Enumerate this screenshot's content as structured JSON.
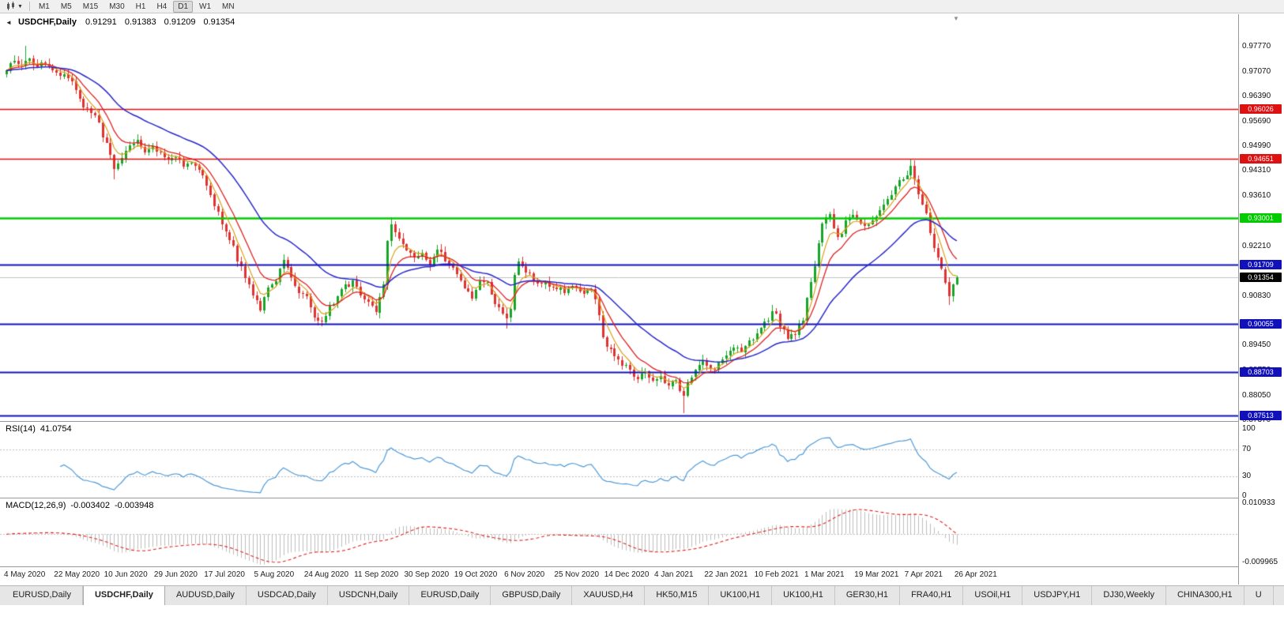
{
  "icons": {
    "collapse": "◄",
    "caret_down": "▼",
    "shift_marker": "▼"
  },
  "toolbar": {
    "timeframes": [
      "M1",
      "M5",
      "M15",
      "M30",
      "H1",
      "H4",
      "D1",
      "W1",
      "MN"
    ],
    "active_timeframe": "D1"
  },
  "tabs": [
    {
      "label": "EURUSD,Daily",
      "active": false
    },
    {
      "label": "USDCHF,Daily",
      "active": true
    },
    {
      "label": "AUDUSD,Daily",
      "active": false
    },
    {
      "label": "USDCAD,Daily",
      "active": false
    },
    {
      "label": "USDCNH,Daily",
      "active": false
    },
    {
      "label": "EURUSD,Daily",
      "active": false
    },
    {
      "label": "GBPUSD,Daily",
      "active": false
    },
    {
      "label": "XAUUSD,H4",
      "active": false
    },
    {
      "label": "HK50,M15",
      "active": false
    },
    {
      "label": "UK100,H1",
      "active": false
    },
    {
      "label": "UK100,H1",
      "active": false
    },
    {
      "label": "GER30,H1",
      "active": false
    },
    {
      "label": "FRA40,H1",
      "active": false
    },
    {
      "label": "USOil,H1",
      "active": false
    },
    {
      "label": "USDJPY,H1",
      "active": false
    },
    {
      "label": "DJ30,Weekly",
      "active": false
    },
    {
      "label": "CHINA300,H1",
      "active": false
    },
    {
      "label": "U",
      "active": false
    }
  ],
  "chart_data": {
    "type": "candlestick",
    "title": {
      "symbol": "USDCHF,Daily",
      "open": "0.91291",
      "high": "0.91383",
      "low": "0.91209",
      "close": "0.91354"
    },
    "x_labels": [
      "4 May 2020",
      "22 May 2020",
      "10 Jun 2020",
      "29 Jun 2020",
      "17 Jul 2020",
      "5 Aug 2020",
      "24 Aug 2020",
      "11 Sep 2020",
      "30 Sep 2020",
      "19 Oct 2020",
      "6 Nov 2020",
      "25 Nov 2020",
      "14 Dec 2020",
      "4 Jan 2021",
      "22 Jan 2021",
      "10 Feb 2021",
      "1 Mar 2021",
      "19 Mar 2021",
      "7 Apr 2021",
      "26 Apr 2021"
    ],
    "label_step": 13,
    "candles_count": 248,
    "price_scale_ticks": [
      "0.97770",
      "0.97070",
      "0.96390",
      "0.95690",
      "0.94990",
      "0.94310",
      "0.93610",
      "0.92910",
      "0.92210",
      "0.90830",
      "0.89450",
      "0.88750",
      "0.88050",
      "0.87370"
    ],
    "price_axis_range": {
      "top": 0.9867,
      "bottom": 0.8735
    },
    "levels": [
      {
        "label": "0.96026",
        "price": 0.96026,
        "color": "#dd1111",
        "width": 1.5,
        "type": "resistance"
      },
      {
        "label": "0.94651",
        "price": 0.94651,
        "color": "#dd1111",
        "width": 1.5,
        "type": "resistance"
      },
      {
        "label": "0.93001",
        "price": 0.93001,
        "color": "#00cc00",
        "width": 2.5,
        "type": "pivot"
      },
      {
        "label": "0.91709",
        "price": 0.91709,
        "color": "#1111bb",
        "width": 2,
        "type": "support"
      },
      {
        "label": "0.90055",
        "price": 0.90055,
        "color": "#1111bb",
        "width": 2,
        "type": "support"
      },
      {
        "label": "0.88703",
        "price": 0.88703,
        "color": "#1111bb",
        "width": 2,
        "type": "support"
      },
      {
        "label": "0.87513",
        "price": 0.87513,
        "color": "#1111bb",
        "width": 2,
        "type": "support"
      }
    ],
    "current_price": {
      "label": "0.91354",
      "price": 0.91354,
      "badge_color": "#000000",
      "line_color": "#c0c0c0"
    },
    "candle_colors": {
      "up": "#18a428",
      "down": "#e03232"
    },
    "moving_averages": [
      {
        "name": "fast-ma",
        "period": 5,
        "type": "ema",
        "color": "#d8a018",
        "width": 1.2
      },
      {
        "name": "mid-ma",
        "period": 10,
        "type": "ema",
        "color": "#dd2020",
        "width": 1.3
      },
      {
        "name": "slow-ma",
        "period": 30,
        "type": "ema",
        "color": "#2828cc",
        "width": 1.5
      }
    ],
    "close_anchors": [
      [
        0,
        0.971
      ],
      [
        2,
        0.9742
      ],
      [
        4,
        0.9722
      ],
      [
        6,
        0.9748
      ],
      [
        8,
        0.9718
      ],
      [
        10,
        0.9735
      ],
      [
        12,
        0.9702
      ],
      [
        14,
        0.9695
      ],
      [
        16,
        0.9692
      ],
      [
        18,
        0.9652
      ],
      [
        20,
        0.9608
      ],
      [
        22,
        0.9598
      ],
      [
        24,
        0.9562
      ],
      [
        26,
        0.9502
      ],
      [
        28,
        0.9438
      ],
      [
        30,
        0.9468
      ],
      [
        32,
        0.9505
      ],
      [
        34,
        0.9518
      ],
      [
        36,
        0.9482
      ],
      [
        38,
        0.95
      ],
      [
        40,
        0.9478
      ],
      [
        42,
        0.9462
      ],
      [
        44,
        0.9476
      ],
      [
        46,
        0.944
      ],
      [
        48,
        0.9452
      ],
      [
        50,
        0.9438
      ],
      [
        52,
        0.9398
      ],
      [
        54,
        0.9338
      ],
      [
        56,
        0.9285
      ],
      [
        58,
        0.9246
      ],
      [
        60,
        0.9186
      ],
      [
        62,
        0.9138
      ],
      [
        64,
        0.9082
      ],
      [
        66,
        0.905
      ],
      [
        68,
        0.91
      ],
      [
        70,
        0.9125
      ],
      [
        72,
        0.918
      ],
      [
        74,
        0.9132
      ],
      [
        76,
        0.9095
      ],
      [
        78,
        0.9082
      ],
      [
        80,
        0.9022
      ],
      [
        82,
        0.9008
      ],
      [
        84,
        0.9048
      ],
      [
        86,
        0.9082
      ],
      [
        88,
        0.9108
      ],
      [
        90,
        0.9122
      ],
      [
        92,
        0.9085
      ],
      [
        94,
        0.9062
      ],
      [
        96,
        0.904
      ],
      [
        98,
        0.912
      ],
      [
        99,
        0.9238
      ],
      [
        100,
        0.929
      ],
      [
        101,
        0.9262
      ],
      [
        102,
        0.9248
      ],
      [
        104,
        0.9212
      ],
      [
        106,
        0.9188
      ],
      [
        108,
        0.9205
      ],
      [
        110,
        0.9168
      ],
      [
        112,
        0.9212
      ],
      [
        114,
        0.9185
      ],
      [
        117,
        0.9142
      ],
      [
        119,
        0.9108
      ],
      [
        121,
        0.9078
      ],
      [
        123,
        0.9118
      ],
      [
        125,
        0.9125
      ],
      [
        127,
        0.9062
      ],
      [
        129,
        0.9028
      ],
      [
        130,
        0.9015
      ],
      [
        131,
        0.9042
      ],
      [
        132,
        0.9148
      ],
      [
        133,
        0.9172
      ],
      [
        135,
        0.9148
      ],
      [
        137,
        0.9132
      ],
      [
        139,
        0.9118
      ],
      [
        141,
        0.9112
      ],
      [
        143,
        0.9108
      ],
      [
        145,
        0.9092
      ],
      [
        147,
        0.911
      ],
      [
        149,
        0.909
      ],
      [
        151,
        0.9102
      ],
      [
        152,
        0.9098
      ],
      [
        153,
        0.9072
      ],
      [
        154,
        0.9028
      ],
      [
        155,
        0.8975
      ],
      [
        156,
        0.8945
      ],
      [
        158,
        0.8922
      ],
      [
        160,
        0.8895
      ],
      [
        162,
        0.8878
      ],
      [
        164,
        0.8852
      ],
      [
        166,
        0.8872
      ],
      [
        168,
        0.8842
      ],
      [
        170,
        0.8858
      ],
      [
        172,
        0.8835
      ],
      [
        174,
        0.8852
      ],
      [
        176,
        0.8798
      ],
      [
        177,
        0.8835
      ],
      [
        179,
        0.8882
      ],
      [
        181,
        0.8898
      ],
      [
        183,
        0.8878
      ],
      [
        185,
        0.889
      ],
      [
        187,
        0.8912
      ],
      [
        189,
        0.894
      ],
      [
        191,
        0.8928
      ],
      [
        193,
        0.8955
      ],
      [
        195,
        0.8978
      ],
      [
        197,
        0.9005
      ],
      [
        199,
        0.9038
      ],
      [
        200,
        0.9042
      ],
      [
        201,
        0.9002
      ],
      [
        203,
        0.8968
      ],
      [
        205,
        0.8982
      ],
      [
        207,
        0.9018
      ],
      [
        208,
        0.9075
      ],
      [
        210,
        0.9165
      ],
      [
        212,
        0.929
      ],
      [
        214,
        0.9312
      ],
      [
        216,
        0.924
      ],
      [
        218,
        0.9288
      ],
      [
        220,
        0.9305
      ],
      [
        221,
        0.9288
      ],
      [
        223,
        0.9272
      ],
      [
        225,
        0.9295
      ],
      [
        227,
        0.9325
      ],
      [
        229,
        0.9355
      ],
      [
        231,
        0.9385
      ],
      [
        233,
        0.9412
      ],
      [
        235,
        0.944
      ],
      [
        236,
        0.9405
      ],
      [
        237,
        0.9362
      ],
      [
        238,
        0.9335
      ],
      [
        239,
        0.9308
      ],
      [
        240,
        0.9255
      ],
      [
        241,
        0.9215
      ],
      [
        242,
        0.9185
      ],
      [
        243,
        0.9158
      ],
      [
        244,
        0.9122
      ],
      [
        245,
        0.909
      ],
      [
        246,
        0.9118
      ],
      [
        247,
        0.91354
      ]
    ],
    "wick_overrides": {
      "highs": {
        "5": 0.9778,
        "100": 0.9302,
        "235": 0.9465
      },
      "lows": {
        "28": 0.9408,
        "82": 0.8998,
        "130": 0.8992,
        "176": 0.8757,
        "245": 0.9058
      }
    },
    "noise_seed": 97,
    "noise_amp": 0.0008,
    "rsi": {
      "header": "RSI(14)",
      "value": "41.0754",
      "period": 14,
      "scale_labels": [
        "100",
        "70",
        "30",
        "0"
      ],
      "guides": [
        70,
        30
      ],
      "color": "#4f9ad6"
    },
    "macd": {
      "header": "MACD(12,26,9)",
      "main": "-0.003402",
      "signal": "-0.003948",
      "fast": 12,
      "slow": 26,
      "signal_period": 9,
      "scale_top_label": "0.010933",
      "scale_top": 0.010933,
      "scale_bottom_label": "-0.009965",
      "scale_bottom": -0.009965,
      "bar_color": "#bdbdbd",
      "signal_color": "#e02020",
      "zero_line_color": "#c0c0c0"
    }
  }
}
